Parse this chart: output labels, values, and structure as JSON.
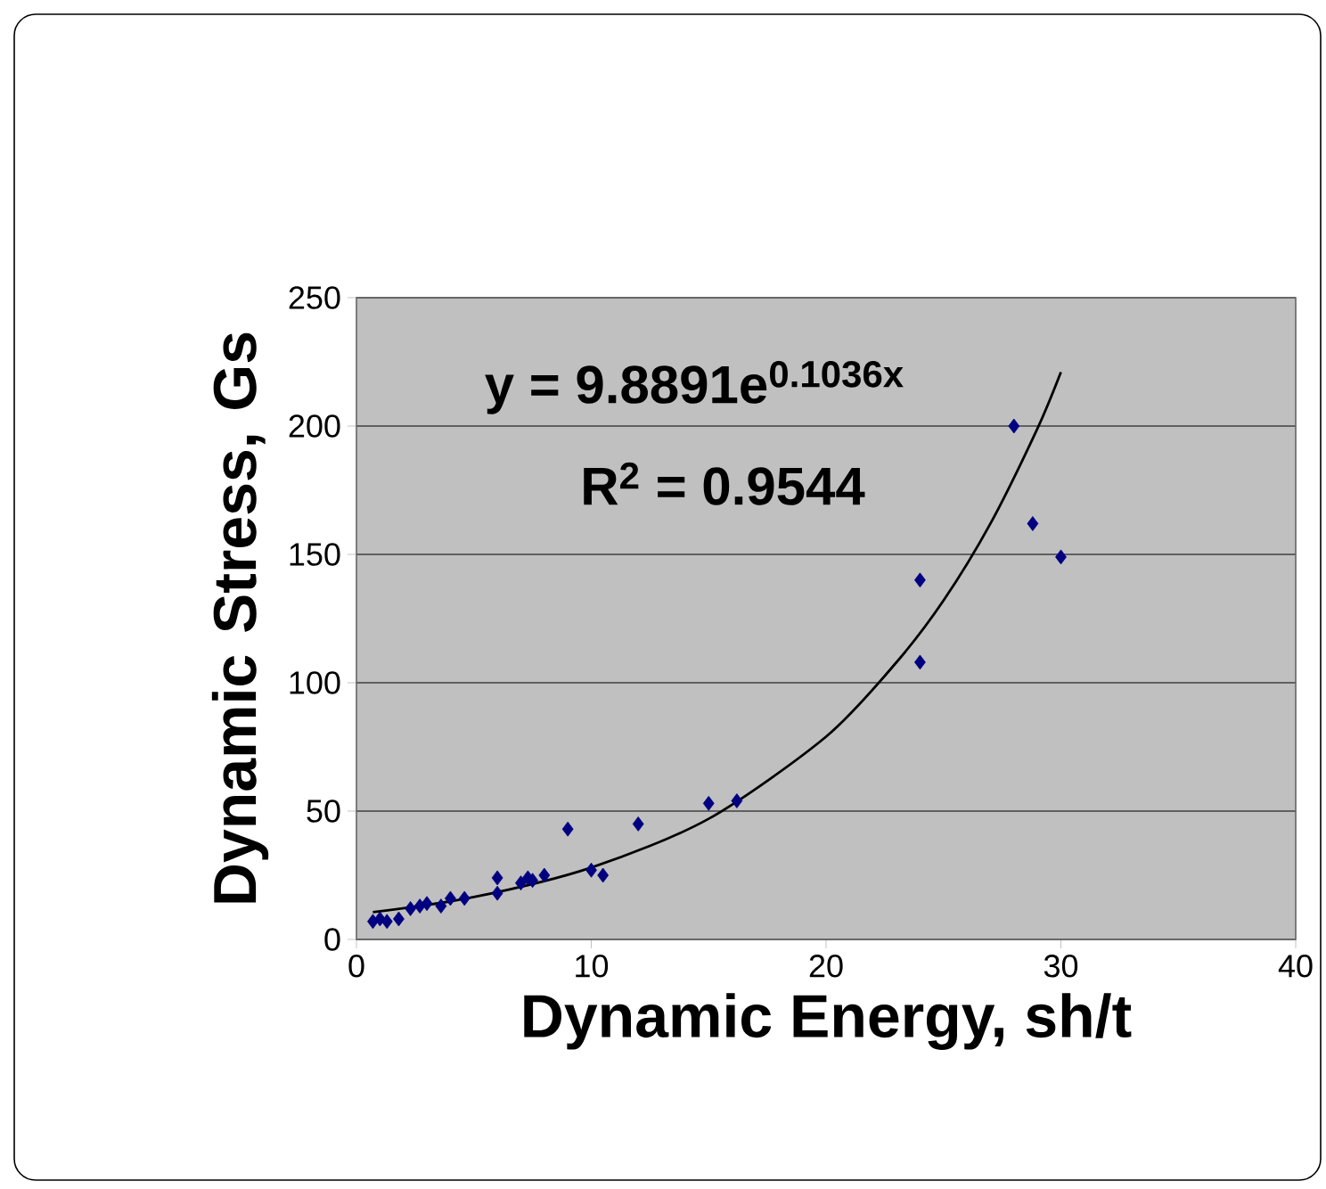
{
  "chart_data": {
    "type": "scatter",
    "xlabel": "Dynamic Energy, sh/t",
    "ylabel": "Dynamic Stress, Gs",
    "annotations": [
      "y = 9.8891e$^{0.1036x}$",
      "R$^{2}$ = 0.9544"
    ],
    "xlim": [
      0,
      40
    ],
    "xticks": [
      0,
      10,
      20,
      30,
      40
    ],
    "ylim": [
      0,
      250
    ],
    "yticks": [
      0,
      50,
      100,
      150,
      200,
      250
    ],
    "grid": "y",
    "series": [
      {
        "color": "#000080",
        "marker": "diamond",
        "x": [
          0.7,
          1.0,
          1.3,
          1.8,
          2.3,
          2.7,
          3.0,
          3.6,
          4.0,
          4.6,
          6.0,
          6.0,
          7.0,
          7.3,
          7.5,
          8.0,
          9.0,
          10.0,
          10.5,
          12.0,
          15.0,
          16.2,
          24.0,
          24.0,
          28.0,
          28.8,
          30.0
        ],
        "values": [
          7,
          8,
          7,
          8,
          12,
          13,
          14,
          13,
          16,
          16,
          18,
          24,
          22,
          24,
          23,
          25,
          43,
          27,
          25,
          45,
          53,
          54,
          140,
          108,
          200,
          162,
          149
        ]
      },
      {
        "type": "line",
        "color": "#000000",
        "marker": "none",
        "x": [
          0.7,
          5,
          10,
          15,
          20,
          23,
          25,
          27,
          29,
          30
        ],
        "values": [
          10.6,
          16.5,
          28,
          47,
          79,
          108,
          132,
          162,
          199,
          221
        ]
      }
    ]
  }
}
